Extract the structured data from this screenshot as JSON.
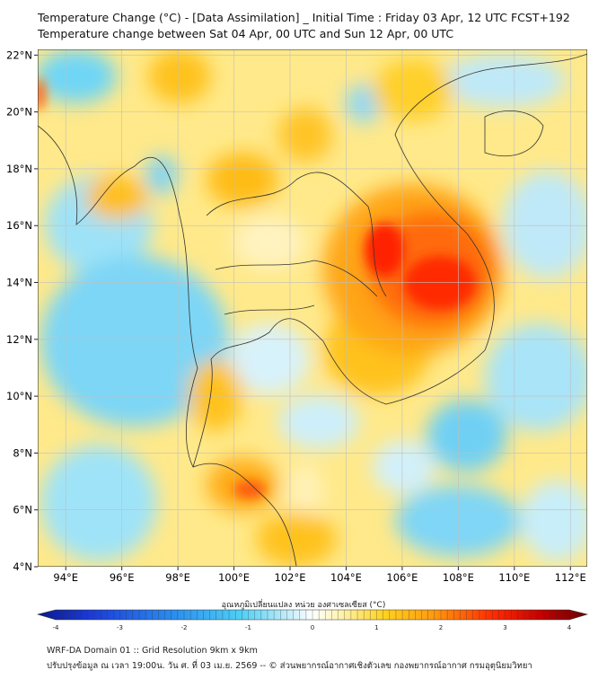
{
  "title_line1": "Temperature Change (°C) - [Data Assimilation] _ Initial Time : Friday 03 Apr, 12 UTC FCST+192",
  "title_line2": "Temperature change between Sat 04 Apr, 00 UTC and Sun 12 Apr, 00 UTC",
  "lat_ticks": [
    "22°N",
    "20°N",
    "18°N",
    "16°N",
    "14°N",
    "12°N",
    "10°N",
    "8°N",
    "6°N",
    "4°N"
  ],
  "lat_values": [
    22,
    20,
    18,
    16,
    14,
    12,
    10,
    8,
    6,
    4
  ],
  "lon_ticks": [
    "94°E",
    "96°E",
    "98°E",
    "100°E",
    "102°E",
    "104°E",
    "106°E",
    "108°E",
    "110°E",
    "112°E"
  ],
  "lon_values": [
    94,
    96,
    98,
    100,
    102,
    104,
    106,
    108,
    110,
    112
  ],
  "extent": {
    "lon_min": 93,
    "lon_max": 112.6,
    "lat_min": 4,
    "lat_max": 22.2
  },
  "colorbar": {
    "label": "อุณหภูมิเปลี่ยนแปลง หน่วย องศาเซลเซียส (°C)",
    "ticks": [
      "-4",
      "-3",
      "-2",
      "-1",
      "0",
      "1",
      "2",
      "3",
      "4"
    ],
    "values": [
      -4,
      -3,
      -2,
      -1,
      0,
      1,
      2,
      3,
      4
    ]
  },
  "colors": {
    "cold_deep": "#0a1a8c",
    "cold": "#3fc8ee",
    "neutral": "#ffffff",
    "warm": "#ffd21e",
    "hot": "#ff2a00",
    "hot_deep": "#7a0000"
  },
  "footer_line1": "WRF-DA Domain 01 :: Grid Resolution 9km x 9km",
  "footer_line2": "ปรับปรุงข้อมูล ณ เวลา 19:00น. วัน ศ. ที่ 03 เม.ย. 2569 -- © ส่วนพยากรณ์อากาศเชิงตัวเลข กองพยากรณ์อากาศ กรมอุตุนิยมวิทยา"
}
